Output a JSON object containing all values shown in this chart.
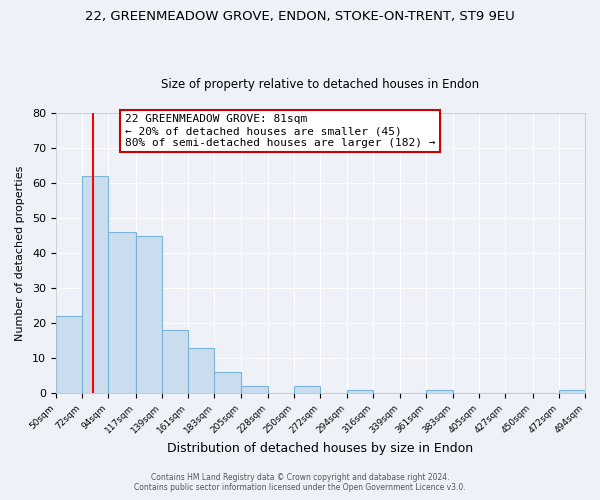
{
  "title1": "22, GREENMEADOW GROVE, ENDON, STOKE-ON-TRENT, ST9 9EU",
  "title2": "Size of property relative to detached houses in Endon",
  "xlabel": "Distribution of detached houses by size in Endon",
  "ylabel": "Number of detached properties",
  "bar_left_edges": [
    50,
    72,
    94,
    117,
    139,
    161,
    183,
    205,
    228,
    250,
    272,
    294,
    316,
    339,
    361,
    383,
    405,
    427,
    450,
    472
  ],
  "bar_heights": [
    22,
    62,
    46,
    45,
    18,
    13,
    6,
    2,
    0,
    2,
    0,
    1,
    0,
    0,
    1,
    0,
    0,
    0,
    0,
    1
  ],
  "bar_widths": [
    22,
    22,
    23,
    22,
    22,
    22,
    22,
    23,
    22,
    22,
    22,
    22,
    23,
    22,
    22,
    22,
    22,
    23,
    22,
    22
  ],
  "tick_labels": [
    "50sqm",
    "72sqm",
    "94sqm",
    "117sqm",
    "139sqm",
    "161sqm",
    "183sqm",
    "205sqm",
    "228sqm",
    "250sqm",
    "272sqm",
    "294sqm",
    "316sqm",
    "339sqm",
    "361sqm",
    "383sqm",
    "405sqm",
    "427sqm",
    "450sqm",
    "472sqm",
    "494sqm"
  ],
  "bar_color": "#c9ddef",
  "bar_edge_color": "#7ab5d8",
  "red_line_x": 81,
  "ylim": [
    0,
    80
  ],
  "yticks": [
    0,
    10,
    20,
    30,
    40,
    50,
    60,
    70,
    80
  ],
  "annotation_title": "22 GREENMEADOW GROVE: 81sqm",
  "annotation_line1": "← 20% of detached houses are smaller (45)",
  "annotation_line2": "80% of semi-detached houses are larger (182) →",
  "annotation_box_color": "#ffffff",
  "annotation_box_edge_color": "#cc0000",
  "footer1": "Contains HM Land Registry data © Crown copyright and database right 2024.",
  "footer2": "Contains public sector information licensed under the Open Government Licence v3.0.",
  "bg_color": "#eef2f8",
  "grid_color": "#ffffff",
  "title1_fontsize": 9.5,
  "title2_fontsize": 8.5,
  "xlabel_fontsize": 9,
  "ylabel_fontsize": 8,
  "annotation_fontsize": 8,
  "footer_fontsize": 5.5
}
